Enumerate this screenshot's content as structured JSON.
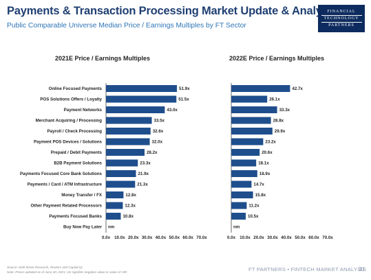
{
  "header": {
    "title": "Payments & Transaction Processing Market Update & Analysis",
    "subtitle": "Public Comparable Universe Median Price / Earnings Multiples by FT Sector",
    "logo_lines": [
      "FINANCIAL",
      "TECHNOLOGY",
      "PARTNERS"
    ]
  },
  "colors": {
    "bar": "#1f4e8c",
    "axis": "#444444",
    "title": "#1f3f72",
    "subtitle": "#2e75b6"
  },
  "chart_data": [
    {
      "type": "bar",
      "orientation": "horizontal",
      "title": "2021E Price / Earnings Multiples",
      "categories": [
        "Online Focused Payments",
        "POS Solutions Offers / Loyalty",
        "Payment Networks",
        "Merchant Acquiring / Processing",
        "Payroll / Check Processing",
        "Payment POS Devices / Solutions",
        "Prepaid / Debit Payments",
        "B2B Payment Solutions",
        "Payments Focused Core Bank Solutions",
        "Payments / Card / ATM Infrastructure",
        "Money Transfer / FX",
        "Other Payment Related Processors",
        "Payments Focused Banks",
        "Buy Now Pay Later"
      ],
      "values": [
        51.9,
        51.5,
        43.0,
        33.5,
        32.6,
        32.0,
        28.2,
        23.3,
        21.9,
        21.3,
        12.8,
        12.3,
        10.8,
        null
      ],
      "labels": [
        "51.9x",
        "51.5x",
        "43.0x",
        "33.5x",
        "32.6x",
        "32.0x",
        "28.2x",
        "23.3x",
        "21.9x",
        "21.3x",
        "12.8x",
        "12.3x",
        "10.8x",
        "nm"
      ],
      "xticks": [
        "0.0x",
        "10.0x",
        "20.0x",
        "30.0x",
        "40.0x",
        "50.0x",
        "60.0x",
        "70.0x"
      ],
      "xlim": [
        0,
        70
      ]
    },
    {
      "type": "bar",
      "orientation": "horizontal",
      "title": "2022E Price / Earnings Multiples",
      "categories": [
        "Online Focused Payments",
        "POS Solutions Offers / Loyalty",
        "Payment Networks",
        "Merchant Acquiring / Processing",
        "Payroll / Check Processing",
        "Payment POS Devices / Solutions",
        "Prepaid / Debit Payments",
        "B2B Payment Solutions",
        "Payments Focused Core Bank Solutions",
        "Payments / Card / ATM Infrastructure",
        "Money Transfer / FX",
        "Other Payment Related Processors",
        "Payments Focused Banks",
        "Buy Now Pay Later"
      ],
      "values": [
        42.7,
        26.1,
        33.3,
        28.8,
        29.9,
        23.2,
        20.6,
        18.1,
        18.9,
        14.7,
        15.8,
        11.2,
        10.5,
        null
      ],
      "labels": [
        "42.7x",
        "26.1x",
        "33.3x",
        "28.8x",
        "29.9x",
        "23.2x",
        "20.6x",
        "18.1x",
        "18.9x",
        "14.7x",
        "15.8x",
        "11.2x",
        "10.5x",
        "nm"
      ],
      "xticks": [
        "0.0x",
        "10.0x",
        "20.0x",
        "30.0x",
        "40.0x",
        "50.0x",
        "60.0x",
        "70.0x"
      ],
      "xlim": [
        0,
        70
      ]
    }
  ],
  "footer": {
    "source": "Source: Wall Street Research, Reuters and Capital IQ",
    "note": "Note: Prices updated as of June 30, 2021; nm signifies negative value or value of >99",
    "brand": "FT PARTNERS • FINTECH MARKET ANALYSIS",
    "page": "31"
  }
}
